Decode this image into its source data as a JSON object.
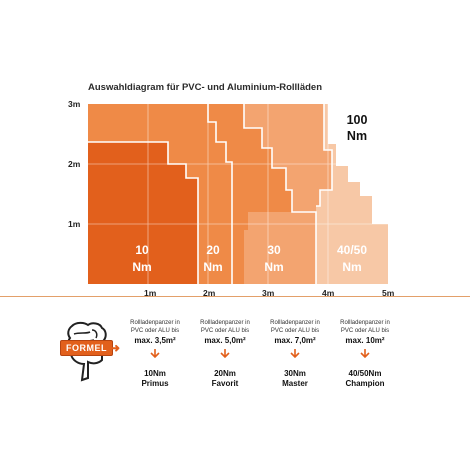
{
  "title": "Auswahldiagram für PVC- und Aluminium-Rollläden",
  "chart_data": {
    "type": "area",
    "title": "Auswahldiagram für PVC- und Aluminium-Rollläden",
    "x_ticks": [
      "1m",
      "2m",
      "3m",
      "4m",
      "5m"
    ],
    "y_ticks": [
      "3m",
      "2m",
      "1m"
    ],
    "xlim": [
      0,
      5
    ],
    "ylim": [
      0,
      3
    ],
    "grid": true,
    "zones": [
      {
        "name": "10 Nm",
        "line1": "10",
        "line2": "Nm",
        "color": "#e2601c"
      },
      {
        "name": "20 Nm",
        "line1": "20",
        "line2": "Nm",
        "color": "#ef8a47"
      },
      {
        "name": "30 Nm",
        "line1": "30",
        "line2": "Nm",
        "color": "#f3a470"
      },
      {
        "name": "40/50 Nm",
        "line1": "40/50",
        "line2": "Nm",
        "color": "#f7c8a6"
      },
      {
        "name": "100 Nm",
        "line1": "100",
        "line2": "Nm",
        "color": "#ffffff"
      }
    ]
  },
  "formel": {
    "label": "FORMEL"
  },
  "products": [
    {
      "desc1": "Rollladenpanzer in",
      "desc2": "PVC oder ALU bis",
      "max": "max. 3,5m²",
      "name1": "10Nm",
      "name2": "Primus"
    },
    {
      "desc1": "Rollladenpanzer in",
      "desc2": "PVC oder ALU bis",
      "max": "max. 5,0m²",
      "name1": "20Nm",
      "name2": "Favorit"
    },
    {
      "desc1": "Rollladenpanzer in",
      "desc2": "PVC oder ALU bis",
      "max": "max. 7,0m²",
      "name1": "30Nm",
      "name2": "Master"
    },
    {
      "desc1": "Rollladenpanzer in",
      "desc2": "PVC oder ALU bis",
      "max": "max. 10m²",
      "name1": "40/50Nm",
      "name2": "Champion"
    }
  ]
}
